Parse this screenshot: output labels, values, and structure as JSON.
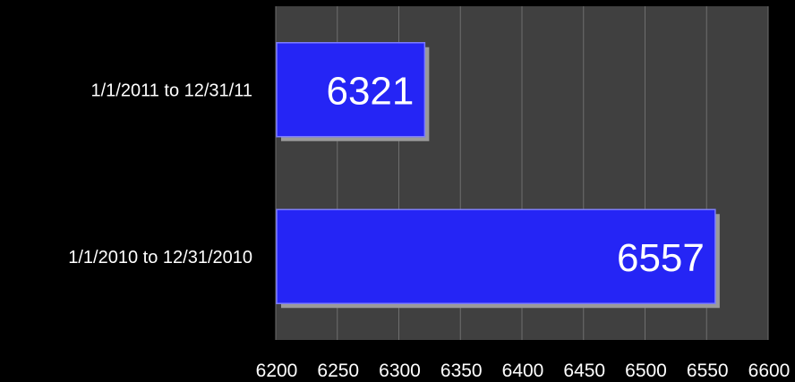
{
  "chart_data": {
    "type": "bar",
    "orientation": "horizontal",
    "categories": [
      "1/1/2011 to 12/31/11",
      "1/1/2010 to 12/31/2010"
    ],
    "values": [
      6321,
      6557
    ],
    "data_labels": [
      "6321",
      "6557"
    ],
    "xlim": [
      6200,
      6600
    ],
    "x_ticks": [
      "6200",
      "6250",
      "6300",
      "6350",
      "6400",
      "6450",
      "6500",
      "6550",
      "6600"
    ],
    "grid": true,
    "colors": {
      "background": "#000000",
      "plot_area": "#404040",
      "gridline": "#6e6e6e",
      "bar_fill": "#2525f5",
      "bar_highlight": "#7c7cff",
      "bar_shadow": "#9a9a9a",
      "text": "#ffffff"
    }
  }
}
